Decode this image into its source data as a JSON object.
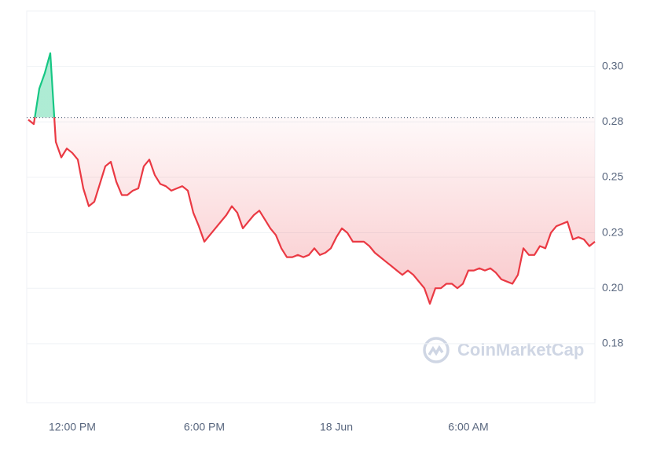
{
  "chart_data": {
    "type": "line",
    "x": [
      10.0,
      10.25,
      10.5,
      10.75,
      11.0,
      11.25,
      11.5,
      11.75,
      12.0,
      12.25,
      12.5,
      12.75,
      13.0,
      13.25,
      13.5,
      13.75,
      14.0,
      14.25,
      14.5,
      14.75,
      15.0,
      15.25,
      15.5,
      15.75,
      16.0,
      16.25,
      16.5,
      16.75,
      17.0,
      17.25,
      17.5,
      17.75,
      18.0,
      18.25,
      18.5,
      18.75,
      19.0,
      19.25,
      19.5,
      19.75,
      20.0,
      20.25,
      20.5,
      20.75,
      21.0,
      21.25,
      21.5,
      21.75,
      22.0,
      22.25,
      22.5,
      22.75,
      23.0,
      23.25,
      23.5,
      23.75,
      24.0,
      24.25,
      24.5,
      24.75,
      25.0,
      25.25,
      25.5,
      25.75,
      26.0,
      26.25,
      26.5,
      26.75,
      27.0,
      27.25,
      27.5,
      27.75,
      28.0,
      28.25,
      28.5,
      28.75,
      29.0,
      29.25,
      29.5,
      29.75,
      30.0,
      30.25,
      30.5,
      30.75,
      31.0,
      31.25,
      31.5,
      31.75,
      32.0,
      32.25,
      32.5,
      32.75,
      33.0,
      33.25,
      33.5,
      33.75,
      34.0,
      34.25,
      34.5,
      34.75,
      35.0,
      35.25,
      35.5,
      35.75
    ],
    "values": [
      0.276,
      0.274,
      0.29,
      0.297,
      0.306,
      0.266,
      0.259,
      0.263,
      0.261,
      0.258,
      0.245,
      0.237,
      0.239,
      0.247,
      0.255,
      0.257,
      0.248,
      0.242,
      0.242,
      0.244,
      0.245,
      0.255,
      0.258,
      0.251,
      0.247,
      0.246,
      0.244,
      0.245,
      0.246,
      0.244,
      0.234,
      0.228,
      0.221,
      0.224,
      0.227,
      0.23,
      0.233,
      0.237,
      0.234,
      0.227,
      0.23,
      0.233,
      0.235,
      0.231,
      0.227,
      0.224,
      0.218,
      0.214,
      0.214,
      0.215,
      0.214,
      0.215,
      0.218,
      0.215,
      0.216,
      0.218,
      0.223,
      0.227,
      0.225,
      0.221,
      0.221,
      0.221,
      0.219,
      0.216,
      0.214,
      0.212,
      0.21,
      0.208,
      0.206,
      0.208,
      0.206,
      0.203,
      0.2,
      0.193,
      0.2,
      0.2,
      0.202,
      0.202,
      0.2,
      0.202,
      0.208,
      0.208,
      0.209,
      0.208,
      0.209,
      0.207,
      0.204,
      0.203,
      0.202,
      0.206,
      0.218,
      0.215,
      0.215,
      0.219,
      0.218,
      0.225,
      0.228,
      0.229,
      0.23,
      0.222,
      0.223,
      0.222,
      0.219,
      0.221
    ],
    "baseline": 0.277,
    "up_color": "#16c784",
    "down_color": "#ea3943",
    "xlim": [
      9.93,
      35.75
    ],
    "ylim": [
      0.1484,
      0.325
    ],
    "xticks": [
      {
        "value": 12,
        "label": "12:00 PM"
      },
      {
        "value": 18,
        "label": "6:00 PM"
      },
      {
        "value": 24,
        "label": "18 Jun"
      },
      {
        "value": 30,
        "label": "6:00 AM"
      }
    ],
    "yticks": [
      {
        "value": 0.175,
        "label": "0.18"
      },
      {
        "value": 0.2,
        "label": "0.20"
      },
      {
        "value": 0.225,
        "label": "0.23"
      },
      {
        "value": 0.25,
        "label": "0.25"
      },
      {
        "value": 0.275,
        "label": "0.28"
      },
      {
        "value": 0.3,
        "label": "0.30"
      }
    ],
    "grid": true,
    "watermark": "CoinMarketCap"
  }
}
